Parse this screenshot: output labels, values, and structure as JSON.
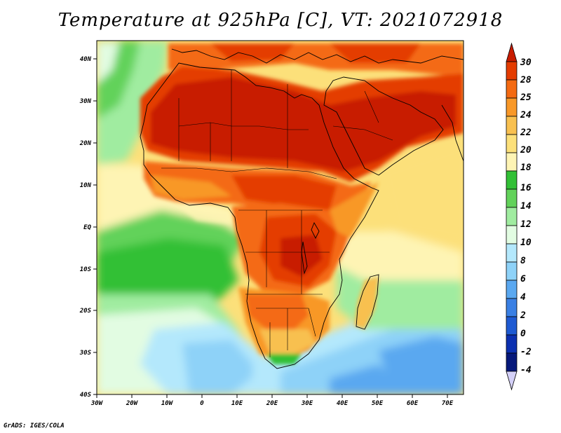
{
  "title": "Temperature at 925hPa [C], VT: 2021072918",
  "footer": "GrADS: IGES/COLA",
  "map": {
    "lon_labels": [
      "30W",
      "20W",
      "10W",
      "0",
      "10E",
      "20E",
      "30E",
      "40E",
      "50E",
      "60E",
      "70E"
    ],
    "lat_labels": [
      "40N",
      "30N",
      "20N",
      "10N",
      "EQ",
      "10S",
      "20S",
      "30S",
      "40S"
    ],
    "extent": {
      "lon": [
        -30,
        75
      ],
      "lat": [
        -40,
        45
      ]
    }
  },
  "colorbar": {
    "labels": [
      "30",
      "28",
      "25",
      "24",
      "22",
      "20",
      "18",
      "16",
      "14",
      "12",
      "10",
      "8",
      "6",
      "4",
      "2",
      "0",
      "-2",
      "-4"
    ],
    "colors": [
      "#c81c00",
      "#e43c00",
      "#f46a12",
      "#f89828",
      "#f8c050",
      "#fce07a",
      "#fef4b4",
      "#32c036",
      "#62d25a",
      "#a0eca0",
      "#e2fce2",
      "#b4e8fc",
      "#8ed2f8",
      "#5aa8f0",
      "#3a80e4",
      "#1e5ad2",
      "#0c30b0",
      "#06187a",
      "#d4d0f8"
    ]
  }
}
